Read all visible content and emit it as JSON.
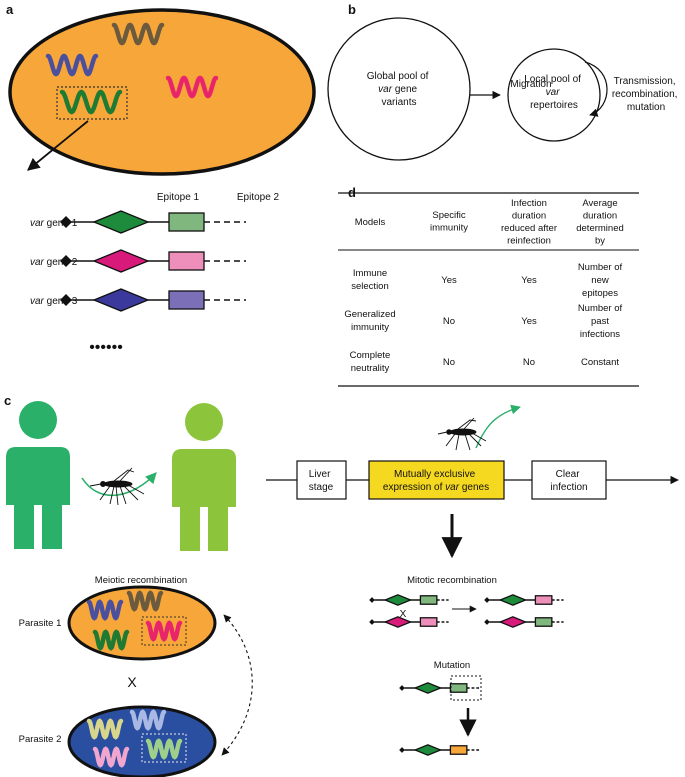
{
  "panels": {
    "a": {
      "letter": "a",
      "epitope1": "Epitope 1",
      "epitope2": "Epitope 2",
      "genes": [
        {
          "italic": "var",
          "rest": " gene 1",
          "diamond": "#1e8a3c",
          "rect": "#7fb77e"
        },
        {
          "italic": "var",
          "rest": " gene 2",
          "diamond": "#d81b7a",
          "rect": "#ee8fbb"
        },
        {
          "italic": "var",
          "rest": " gene 3",
          "diamond": "#3b3a9c",
          "rect": "#7b6fb8"
        }
      ],
      "ellipsis": "••••••",
      "cell_color": "#f7a63a",
      "wave_colors": [
        "#4a4f9e",
        "#6b5a3e",
        "#e8246a",
        "#1f7a32"
      ]
    },
    "b": {
      "letter": "b",
      "global_pool": [
        "Global pool of",
        {
          "italic": "var",
          "rest": " gene"
        },
        "variants"
      ],
      "migration": "Migration",
      "local_pool": [
        "Local pool of",
        {
          "italic": "var",
          "rest": ""
        },
        "repertoires"
      ],
      "loop_label": [
        "Transmission,",
        "recombination,",
        "mutation"
      ]
    },
    "c": {
      "letter": "c",
      "human_left_color": "#2bb06a",
      "human_right_color": "#8cc43c",
      "mosquito_arrow_color": "#2bb06a",
      "liver_stage": [
        "Liver",
        "stage"
      ],
      "expression_line1": "Mutually exclusive",
      "expression_line2": {
        "plain": "expression of ",
        "italic": "var",
        "rest": " genes"
      },
      "expression_color": "#f5d820",
      "clear_infection": [
        "Clear",
        "infection"
      ],
      "meiotic_title": "Meiotic recombination",
      "parasite1": "Parasite 1",
      "parasite2": "Parasite 2",
      "cross_symbol": "X",
      "parasite2_color": "#2a4fa0",
      "mitotic_title": "Mitotic recombination",
      "mutation_title": "Mutation",
      "mutated_rect_color": "#f7a63a"
    },
    "d": {
      "letter": "d",
      "headers": [
        [
          "Models"
        ],
        [
          "Specific",
          "immunity"
        ],
        [
          "Infection",
          "duration",
          "reduced after",
          "reinfection"
        ],
        [
          "Average",
          "duration",
          "determined",
          "by"
        ]
      ],
      "rows": [
        {
          "model": [
            "Immune",
            "selection"
          ],
          "specific": "Yes",
          "reduced": "Yes",
          "avg": [
            "Number of",
            "new",
            "epitopes"
          ]
        },
        {
          "model": [
            "Generalized",
            "immunity"
          ],
          "specific": "No",
          "reduced": "Yes",
          "avg": [
            "Number of",
            "past",
            "infections"
          ]
        },
        {
          "model": [
            "Complete",
            "neutrality"
          ],
          "specific": "No",
          "reduced": "No",
          "avg": [
            "Constant"
          ]
        }
      ]
    }
  }
}
